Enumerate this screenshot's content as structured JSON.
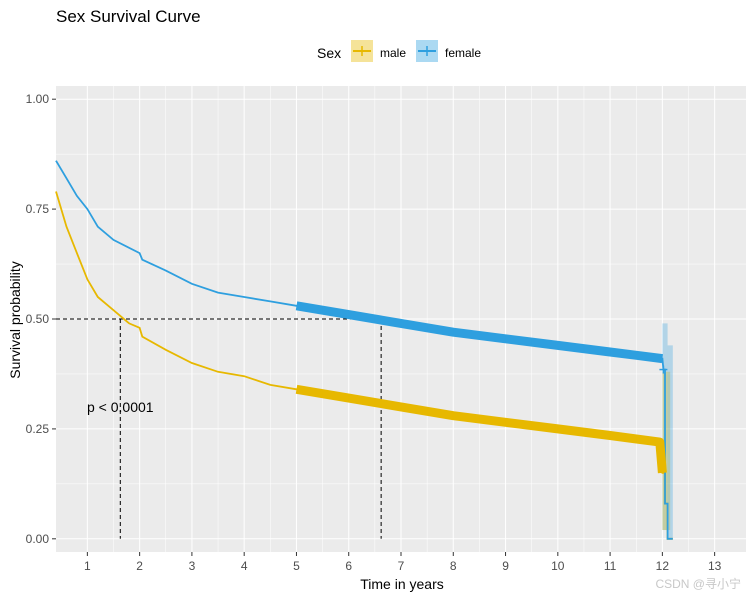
{
  "chart_data": {
    "type": "line",
    "title": "Sex Survival Curve",
    "xlabel": "Time in years",
    "ylabel": "Survival probability",
    "xlim": [
      0.4,
      13.6
    ],
    "ylim": [
      -0.03,
      1.03
    ],
    "x_ticks": [
      "1",
      "2",
      "3",
      "4",
      "5",
      "6",
      "7",
      "8",
      "9",
      "10",
      "11",
      "12",
      "13"
    ],
    "y_ticks": [
      "0.00",
      "0.25",
      "0.50",
      "0.75",
      "1.00"
    ],
    "legend": {
      "title": "Sex",
      "position": "top"
    },
    "annotation": "p < 0.0001",
    "median_line_y": 0.5,
    "series": [
      {
        "name": "male",
        "color": "#E7B800",
        "x": [
          0.4,
          0.6,
          0.8,
          1.0,
          1.2,
          1.4,
          1.6,
          1.8,
          2.0,
          2.05,
          2.5,
          3.0,
          3.5,
          4.0,
          4.5,
          5.0,
          6.0,
          7.0,
          8.0,
          9.0,
          10.0,
          11.0,
          11.95,
          12.0,
          12.05,
          12.05,
          12.1,
          12.1,
          12.2
        ],
        "values": [
          0.79,
          0.71,
          0.65,
          0.59,
          0.55,
          0.53,
          0.51,
          0.49,
          0.48,
          0.46,
          0.43,
          0.4,
          0.38,
          0.37,
          0.35,
          0.34,
          0.32,
          0.3,
          0.28,
          0.265,
          0.25,
          0.235,
          0.22,
          0.15,
          0.15,
          0.08,
          0.08,
          0.0,
          0.0
        ],
        "median": 1.63
      },
      {
        "name": "female",
        "color": "#2E9FDF",
        "x": [
          0.4,
          0.6,
          0.8,
          1.0,
          1.2,
          1.5,
          2.0,
          2.05,
          2.5,
          3.0,
          3.5,
          4.0,
          4.5,
          5.0,
          6.0,
          7.0,
          8.0,
          9.0,
          10.0,
          11.0,
          12.0,
          12.02,
          12.05,
          12.05,
          12.1,
          12.1,
          12.2
        ],
        "values": [
          0.86,
          0.82,
          0.78,
          0.75,
          0.71,
          0.68,
          0.65,
          0.635,
          0.61,
          0.58,
          0.56,
          0.55,
          0.54,
          0.53,
          0.51,
          0.49,
          0.47,
          0.455,
          0.44,
          0.425,
          0.41,
          0.385,
          0.385,
          0.08,
          0.08,
          0.0,
          0.0
        ],
        "median": 6.62
      }
    ]
  },
  "watermark": "CSDN @寻小宁"
}
